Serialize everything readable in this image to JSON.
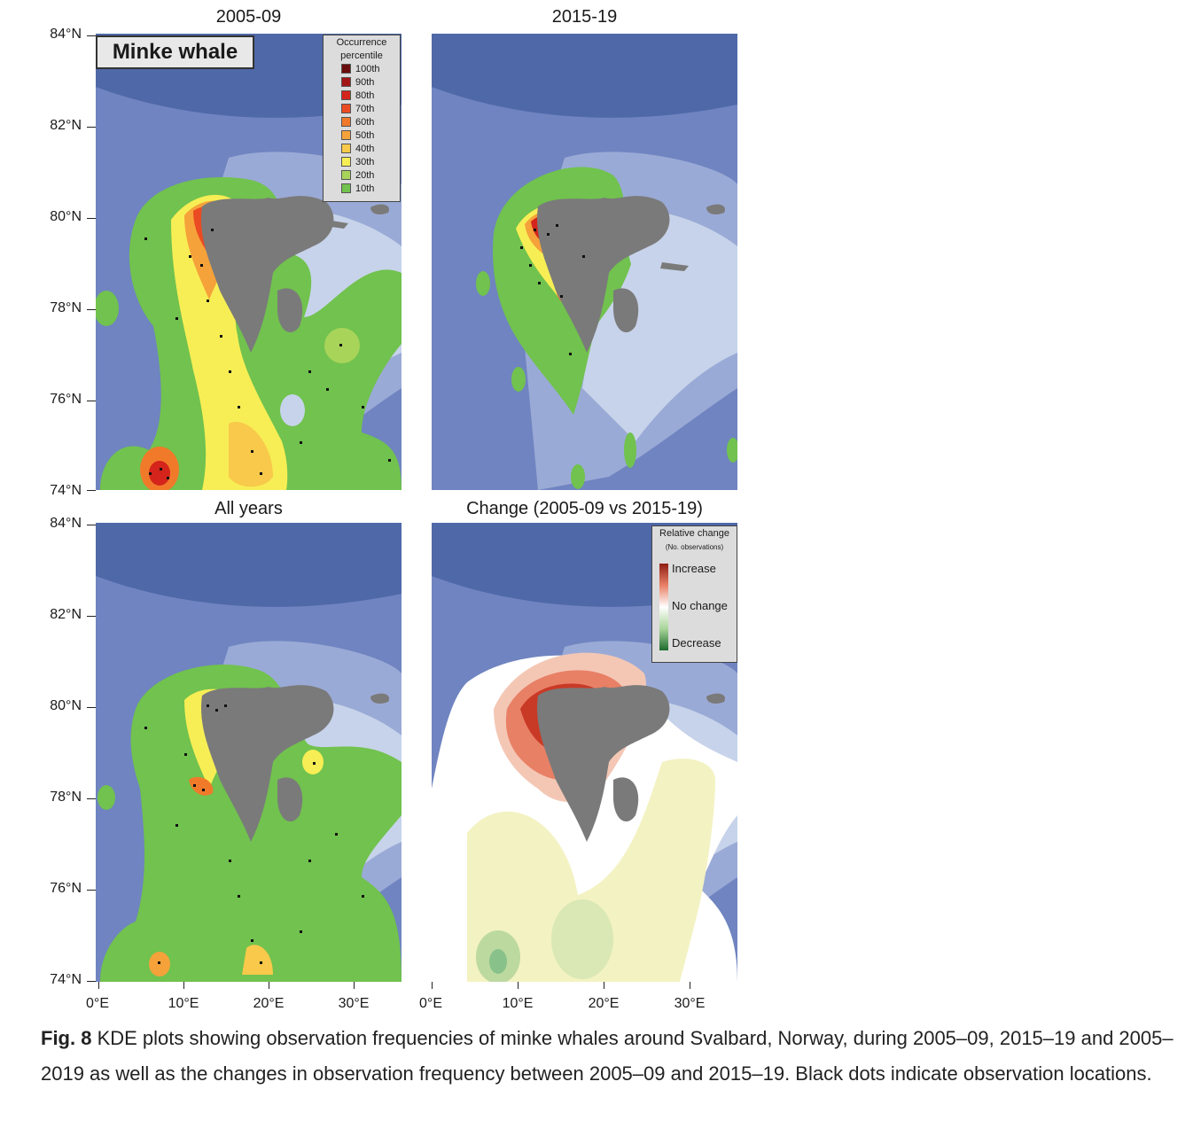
{
  "figure": {
    "species_label": "Minke whale",
    "panels": [
      {
        "id": "p1",
        "title": "2005-09"
      },
      {
        "id": "p2",
        "title": "2015-19"
      },
      {
        "id": "p3",
        "title": "All years"
      },
      {
        "id": "p4",
        "title": "Change (2005-09 vs 2015-19)"
      }
    ],
    "y_axis_labels": [
      "84°N",
      "82°N",
      "80°N",
      "78°N",
      "76°N",
      "74°N"
    ],
    "x_axis_labels": [
      "0°E",
      "10°E",
      "20°E",
      "30°E"
    ],
    "occurrence_legend": {
      "title_line1": "Occurrence",
      "title_line2": "percentile",
      "items": [
        {
          "label": "100th",
          "color": "#6b0d0d"
        },
        {
          "label": "90th",
          "color": "#a31616"
        },
        {
          "label": "80th",
          "color": "#d4241b"
        },
        {
          "label": "70th",
          "color": "#ea4b22"
        },
        {
          "label": "60th",
          "color": "#f07a2a"
        },
        {
          "label": "50th",
          "color": "#f5a23a"
        },
        {
          "label": "40th",
          "color": "#f8c94a"
        },
        {
          "label": "30th",
          "color": "#f7ee55"
        },
        {
          "label": "20th",
          "color": "#a8d45a"
        },
        {
          "label": "10th",
          "color": "#71c24e"
        }
      ]
    },
    "change_legend": {
      "title_line1": "Relative change",
      "title_line2": "(No. observations)",
      "increase": "Increase",
      "no_change": "No change",
      "decrease": "Decrease"
    },
    "colors": {
      "ocean_deep": "#4f68a8",
      "ocean_mid": "#7f93c8",
      "ocean_shallow": "#c7d3ea",
      "land": "#7a7a7a",
      "dots": "#111111"
    }
  },
  "caption": {
    "label": "Fig. 8",
    "text": " KDE plots showing observation frequencies of minke whales around Svalbard, Norway, during 2005–09, 2015–19 and 2005–2019 as well as the changes in observation frequency between 2005–09 and 2015–19. Black dots indicate observation locations."
  }
}
